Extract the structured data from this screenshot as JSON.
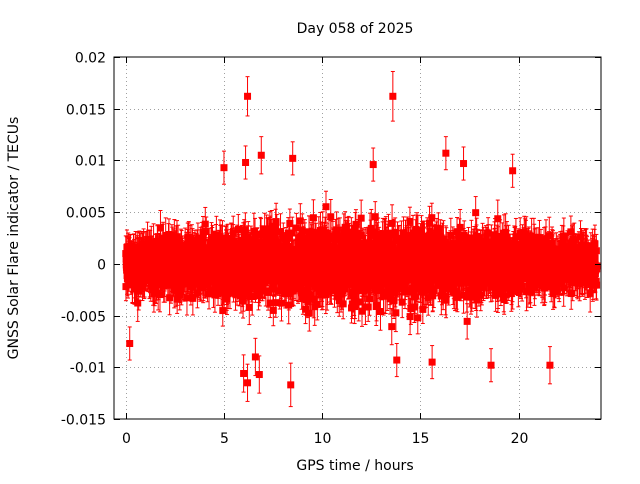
{
  "chart_data": {
    "type": "scatter",
    "title": "Day 058 of 2025",
    "xlabel": "GPS time / hours",
    "ylabel": "GNSS Solar Flare indicator / TECUs",
    "xlim": [
      -0.6,
      24.2
    ],
    "ylim": [
      -0.015,
      0.02
    ],
    "xticks": [
      0,
      5,
      10,
      15,
      20
    ],
    "xtick_labels": [
      "0",
      "5",
      "10",
      "15",
      "20"
    ],
    "yticks": [
      -0.015,
      -0.01,
      -0.005,
      0,
      0.005,
      0.01,
      0.015,
      0.02
    ],
    "ytick_labels": [
      "-0.015",
      "-0.01",
      "-0.005",
      "0",
      "0.005",
      "0.01",
      "0.015",
      "0.02"
    ],
    "grid": true,
    "grid_style": "dotted",
    "legend": "none",
    "series": [
      {
        "color": "#ff0000",
        "marker": "square",
        "error_bars": true,
        "sampling_interval_hours": 0.00833,
        "typical_error": 0.0016,
        "x_start": 0,
        "x_end": 23.992,
        "bulk_y_range": [
          -0.0075,
          0.0075
        ],
        "notable_points": [
          {
            "x": 6.2,
            "y": 0.0162,
            "err": 0.0019
          },
          {
            "x": 13.6,
            "y": 0.0162,
            "err": 0.0024
          },
          {
            "x": 6.9,
            "y": 0.0105,
            "err": 0.0018
          },
          {
            "x": 8.5,
            "y": 0.0102,
            "err": 0.0016
          },
          {
            "x": 16.3,
            "y": 0.0107,
            "err": 0.0016
          },
          {
            "x": 17.2,
            "y": 0.0097,
            "err": 0.0016
          },
          {
            "x": 5.0,
            "y": 0.0093,
            "err": 0.0016
          },
          {
            "x": 6.1,
            "y": 0.0098,
            "err": 0.0016
          },
          {
            "x": 12.6,
            "y": 0.0096,
            "err": 0.0016
          },
          {
            "x": 19.7,
            "y": 0.009,
            "err": 0.0016
          },
          {
            "x": 8.4,
            "y": -0.0117,
            "err": 0.0021
          },
          {
            "x": 6.2,
            "y": -0.0115,
            "err": 0.0018
          },
          {
            "x": 6.0,
            "y": -0.0106,
            "err": 0.0018
          },
          {
            "x": 6.8,
            "y": -0.0107,
            "err": 0.0018
          },
          {
            "x": 6.6,
            "y": -0.009,
            "err": 0.0018
          },
          {
            "x": 13.8,
            "y": -0.0093,
            "err": 0.0016
          },
          {
            "x": 15.6,
            "y": -0.0095,
            "err": 0.0016
          },
          {
            "x": 18.6,
            "y": -0.0098,
            "err": 0.0016
          },
          {
            "x": 21.6,
            "y": -0.0098,
            "err": 0.0018
          },
          {
            "x": 0.2,
            "y": -0.0077,
            "err": 0.0016
          }
        ]
      }
    ]
  }
}
